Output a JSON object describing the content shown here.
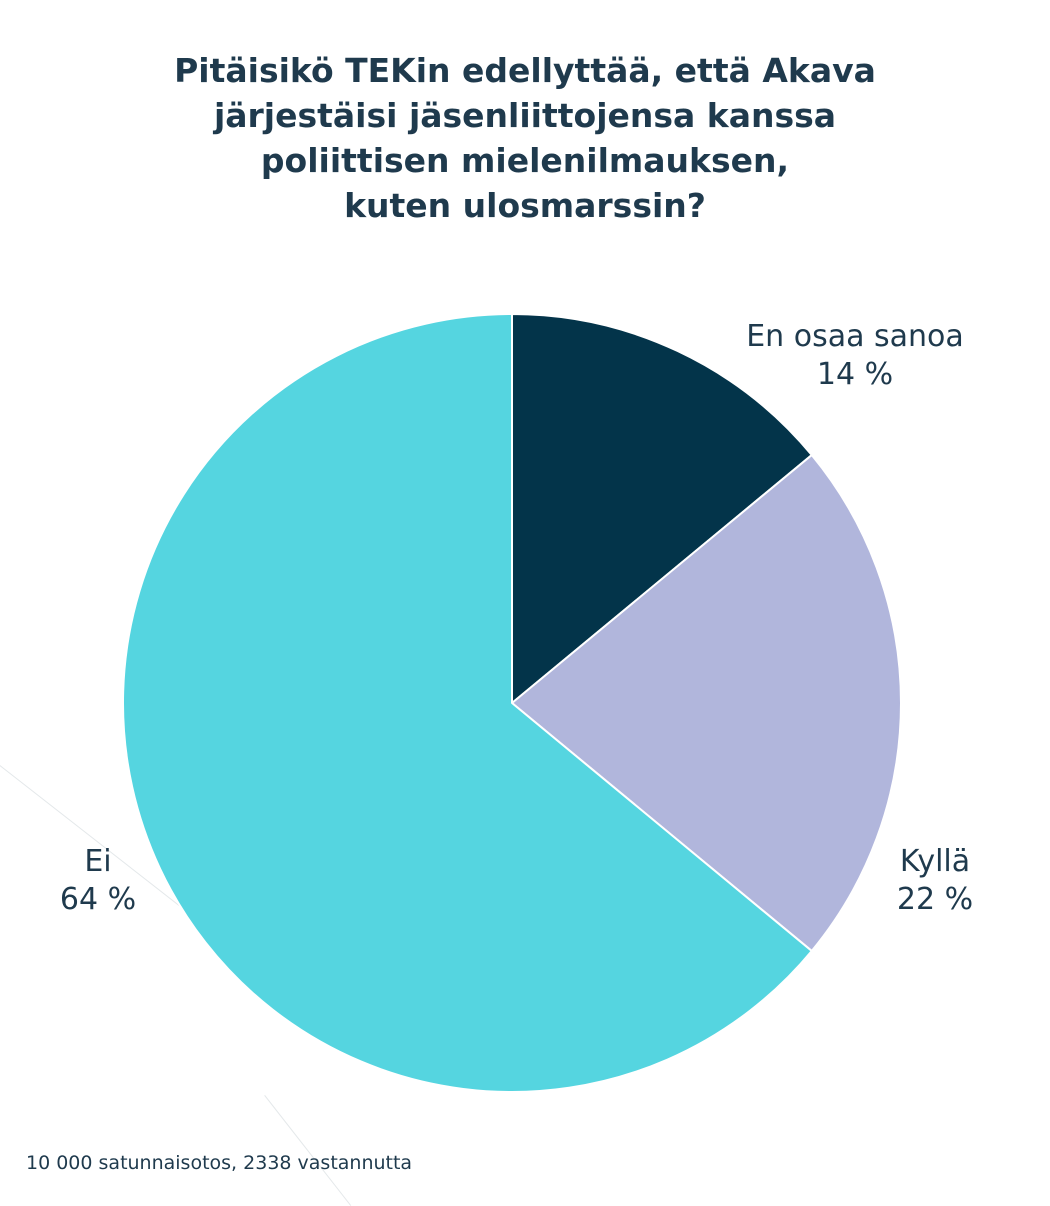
{
  "chart_data": {
    "type": "pie",
    "title_lines": [
      "Pitäisikö TEKin edellyttää, että Akava",
      "järjestäisi jäsenliittojensa kanssa",
      "poliittisen mielenilmauksen,",
      "kuten ulosmarssin?"
    ],
    "slices": [
      {
        "label": "En osaa sanoa",
        "value": 14,
        "value_label": "14 %",
        "color": "#03344a"
      },
      {
        "label": "Kyllä",
        "value": 22,
        "value_label": "22 %",
        "color": "#b1b6dc"
      },
      {
        "label": "Ei",
        "value": 64,
        "value_label": "64 %",
        "color": "#55d5e0"
      }
    ],
    "start_angle": "12 o'clock",
    "direction": "clockwise",
    "footnote": "10 000 satunnaisotos, 2338 vastannutta"
  }
}
